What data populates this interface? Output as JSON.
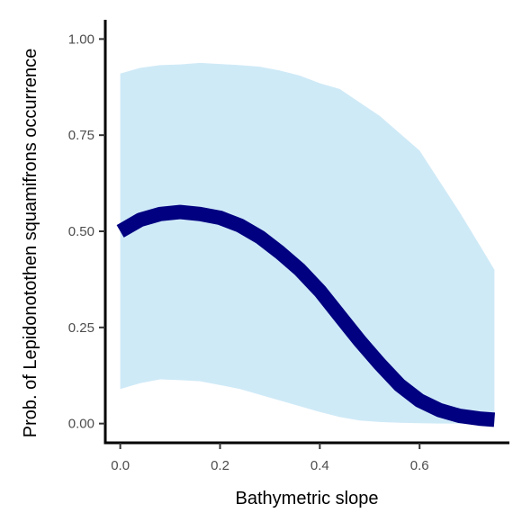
{
  "chart_data": {
    "type": "line",
    "title": "",
    "xlabel": "Bathymetric slope",
    "ylabel": "Prob. of  Lepidonotothen squamifrons  occurrence",
    "xlim": [
      -0.03,
      0.78
    ],
    "ylim": [
      -0.05,
      1.05
    ],
    "x_ticks": [
      0.0,
      0.2,
      0.4,
      0.6
    ],
    "x_tick_labels": [
      "0.0",
      "0.2",
      "0.4",
      "0.6"
    ],
    "y_ticks": [
      0.0,
      0.25,
      0.5,
      0.75,
      1.0
    ],
    "y_tick_labels": [
      "0.00",
      "0.25",
      "0.50",
      "0.75",
      "1.00"
    ],
    "grid": false,
    "legend": "none",
    "colors": {
      "line": "#000080",
      "band": "#cfeaf7",
      "axis": "#000000"
    },
    "series": [
      {
        "x": [
          0.0,
          0.04,
          0.08,
          0.12,
          0.16,
          0.2,
          0.24,
          0.28,
          0.32,
          0.36,
          0.4,
          0.44,
          0.48,
          0.52,
          0.56,
          0.6,
          0.64,
          0.68,
          0.72,
          0.75
        ],
        "y": [
          0.5,
          0.53,
          0.545,
          0.55,
          0.545,
          0.535,
          0.515,
          0.485,
          0.445,
          0.4,
          0.345,
          0.28,
          0.215,
          0.155,
          0.1,
          0.06,
          0.035,
          0.02,
          0.013,
          0.01
        ],
        "lower": [
          0.09,
          0.105,
          0.115,
          0.113,
          0.11,
          0.1,
          0.09,
          0.075,
          0.06,
          0.045,
          0.03,
          0.017,
          0.008,
          0.004,
          0.002,
          0.001,
          0.0,
          0.0,
          0.0,
          0.0
        ],
        "upper": [
          0.91,
          0.925,
          0.932,
          0.934,
          0.938,
          0.935,
          0.932,
          0.928,
          0.918,
          0.905,
          0.885,
          0.87,
          0.835,
          0.8,
          0.755,
          0.71,
          0.63,
          0.55,
          0.465,
          0.4
        ]
      }
    ]
  }
}
